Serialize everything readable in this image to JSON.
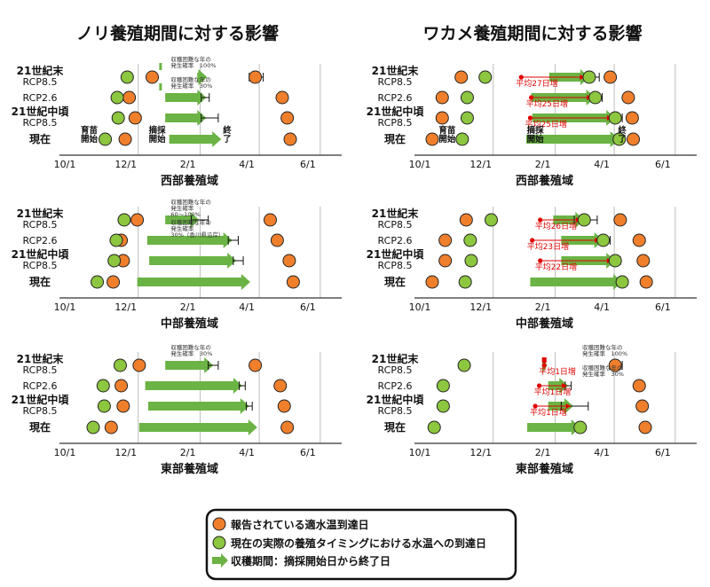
{
  "titles": {
    "nori": "ノリ養殖期間に対する影響",
    "wakame": "ワカメ養殖期間に対する影響"
  },
  "axis_ticks": [
    "10/1",
    "12/1",
    "2/1",
    "4/1",
    "6/1"
  ],
  "row_labels": [
    {
      "bold": "21世紀末",
      "sub": "RCP8.5"
    },
    {
      "bold": "",
      "sub": "RCP2.6"
    },
    {
      "bold": "21世紀中頃",
      "sub": "RCP8.5"
    },
    {
      "bold": "現在",
      "sub": ""
    }
  ],
  "legend": {
    "orange": "報告されている適水温到達日",
    "green": "現在の実際の養殖タイミングにおける水温への到達日",
    "arrow": "収穫期間：摘採開始日から終了日"
  },
  "colors": {
    "orange": "#f07f2c",
    "green": "#8dc63f",
    "arrow": "#6ab344",
    "red": "#e00000",
    "grid": "#bdbdbd"
  },
  "chart_data": [
    {
      "type": "timeline",
      "species": "nori",
      "region": "西部養殖域",
      "panel_title": "西部養殖域",
      "x_unit": "day-of-month from Oct 1 (0=10/1, 61=12/1, 123=2/1, 182=4/1, 243=6/1)",
      "x_range": [
        0,
        260
      ],
      "rows": [
        {
          "label": "21世紀末 RCP8.5",
          "orange": [
            75,
            178
          ],
          "green": [
            50
          ],
          "arrow": [
            120,
            130
          ],
          "errorbars": [
            [
              172,
              186
            ]
          ]
        },
        {
          "label": "RCP2.6",
          "orange": [
            52,
            205
          ],
          "green": [
            40
          ],
          "arrow": [
            88,
            129
          ],
          "errorbars": [
            [
              124,
              132
            ]
          ]
        },
        {
          "label": "21世紀中頃 RCP8.5",
          "orange": [
            58,
            210
          ],
          "green": [
            41
          ],
          "arrow": [
            88,
            129
          ],
          "errorbars": [
            [
              124,
              141
            ]
          ]
        },
        {
          "label": "現在",
          "orange": [
            48,
            213
          ],
          "green": [
            28
          ],
          "arrow": [
            92,
            144
          ],
          "errorbars": []
        }
      ],
      "notes": [
        {
          "lines": [
            "収穫困難な年の",
            "発生確率　100%"
          ],
          "row": 0
        },
        {
          "lines": [
            "収穫困難な年の",
            "発生確率　30%"
          ],
          "row": 1
        }
      ],
      "events": {
        "start_lines": [
          "育苗",
          "開始"
        ],
        "harvest_lines": [
          "摘採",
          "開始"
        ],
        "end_lines": [
          "終",
          "了"
        ]
      }
    },
    {
      "type": "timeline",
      "species": "nori",
      "region": "中部養殖域",
      "panel_title": "中部養殖域",
      "x_range": [
        0,
        260
      ],
      "rows": [
        {
          "label": "21世紀末 RCP8.5",
          "orange": [
            60,
            193
          ],
          "green": [
            47
          ],
          "arrow": [
            88,
            122
          ],
          "errorbars": [
            [
              114,
              131
            ]
          ]
        },
        {
          "label": "RCP2.6",
          "orange": [
            44,
            200
          ],
          "green": [
            39
          ],
          "arrow": [
            70,
            155
          ],
          "errorbars": [
            [
              151,
              161
            ]
          ]
        },
        {
          "label": "21世紀中頃 RCP8.5",
          "orange": [
            46,
            212
          ],
          "green": [
            37
          ],
          "arrow": [
            72,
            159
          ],
          "errorbars": [
            [
              156,
              166
            ]
          ]
        },
        {
          "label": "現在",
          "orange": [
            36,
            216
          ],
          "green": [
            20
          ],
          "arrow": [
            60,
            173
          ],
          "errorbars": []
        }
      ],
      "notes": [
        {
          "lines": [
            "収穫困難な年の",
            "発生確率",
            "60～100%"
          ],
          "row": 0
        },
        {
          "lines": [
            "収穫困難な年の",
            "発生確率",
            "30%（香川県沿岸）"
          ],
          "row": 1
        }
      ]
    },
    {
      "type": "timeline",
      "species": "nori",
      "region": "東部養殖域",
      "panel_title": "東部養殖域",
      "x_range": [
        0,
        260
      ],
      "rows": [
        {
          "label": "21世紀末 RCP8.5",
          "orange": [
            62,
            178
          ],
          "green": [
            43
          ],
          "arrow": [
            88,
            136
          ],
          "errorbars": [
            [
              131,
              141
            ]
          ]
        },
        {
          "label": "RCP2.6",
          "orange": [
            44,
            203
          ],
          "green": [
            26
          ],
          "arrow": [
            68,
            165
          ],
          "errorbars": [
            [
              162,
              168
            ]
          ]
        },
        {
          "label": "21世紀中頃 RCP8.5",
          "orange": [
            46,
            207
          ],
          "green": [
            27
          ],
          "arrow": [
            71,
            172
          ],
          "errorbars": [
            [
              169,
              175
            ]
          ]
        },
        {
          "label": "現在",
          "orange": [
            34,
            210
          ],
          "green": [
            16
          ],
          "arrow": [
            62,
            180
          ],
          "errorbars": []
        }
      ],
      "notes": [
        {
          "lines": [
            "収穫困難な年の",
            "発生確率　30%"
          ],
          "row": 0
        }
      ]
    },
    {
      "type": "timeline",
      "species": "wakame",
      "region": "西部養殖域",
      "panel_title": "西部養殖域",
      "x_range": [
        0,
        260
      ],
      "rows": [
        {
          "label": "21世紀末 RCP8.5",
          "orange": [
            29,
            178
          ],
          "green": [
            53,
            157
          ],
          "arrow": [
            117,
            157
          ],
          "errorbars": [
            [
              154,
              167
            ]
          ],
          "shift": {
            "text": "平均27日増",
            "from": 89,
            "to": 153
          }
        },
        {
          "label": "RCP2.6",
          "orange": [
            10,
            196
          ],
          "green": [
            35,
            163
          ],
          "arrow": [
            99,
            163
          ],
          "errorbars": [
            [
              160,
              170
            ]
          ],
          "shift": {
            "text": "平均25日増",
            "from": 99,
            "to": 160
          }
        },
        {
          "label": "21世紀中頃 RCP8.5",
          "orange": [
            10,
            200
          ],
          "green": [
            35,
            183
          ],
          "arrow": [
            100,
            183
          ],
          "errorbars": [
            [
              180,
              190
            ]
          ],
          "shift": {
            "text": "平均25日増",
            "from": 98,
            "to": 180
          }
        },
        {
          "label": "現在",
          "orange": [
            0,
            201
          ],
          "green": [
            30,
            187
          ],
          "arrow": [
            94,
            187
          ],
          "errorbars": []
        }
      ],
      "events": {
        "start_lines": [
          "育苗",
          "開始"
        ],
        "harvest_lines": [
          "摘採",
          "開始"
        ],
        "end_lines": [
          "終",
          "了"
        ]
      }
    },
    {
      "type": "timeline",
      "species": "wakame",
      "region": "中部養殖域",
      "panel_title": "中部養殖域",
      "x_range": [
        0,
        260
      ],
      "rows": [
        {
          "label": "21世紀末 RCP8.5",
          "orange": [
            34,
            188
          ],
          "green": [
            59,
            152
          ],
          "arrow": [
            121,
            152
          ],
          "errorbars": [
            [
              142,
              165
            ]
          ],
          "shift": {
            "text": "平均26日増",
            "from": 108,
            "to": 149
          }
        },
        {
          "label": "RCP2.6",
          "orange": [
            13,
            207
          ],
          "green": [
            38,
            171
          ],
          "arrow": [
            129,
            171
          ],
          "errorbars": [
            [
              168,
              178
            ]
          ],
          "shift": {
            "text": "平均23日増",
            "from": 100,
            "to": 168
          }
        },
        {
          "label": "21世紀中頃 RCP8.5",
          "orange": [
            13,
            211
          ],
          "green": [
            39,
            183
          ],
          "arrow": [
            129,
            183
          ],
          "errorbars": [
            [
              180,
              188
            ]
          ],
          "shift": {
            "text": "平均22日増",
            "from": 108,
            "to": 180
          }
        },
        {
          "label": "現在",
          "orange": [
            0,
            214
          ],
          "green": [
            33,
            190
          ],
          "arrow": [
            98,
            190
          ],
          "errorbars": []
        }
      ]
    },
    {
      "type": "timeline",
      "species": "wakame",
      "region": "東部養殖域",
      "panel_title": "東部養殖域",
      "x_range": [
        0,
        260
      ],
      "rows": [
        {
          "label": "21世紀末 RCP8.5",
          "orange": [
            183
          ],
          "green": [
            32
          ],
          "arrow": [
            110,
            115
          ],
          "errorbars": [
            [
              178,
              190
            ]
          ],
          "marker": 112,
          "shift": {
            "text": "平均1日増",
            "from": 112,
            "to": 112
          }
        },
        {
          "label": "RCP2.6",
          "orange": [
            207
          ],
          "green": [
            11
          ],
          "arrow": [
            116,
            136
          ],
          "errorbars": [
            [
              133,
              139
            ]
          ],
          "shift": {
            "text": "平均1日増",
            "from": 107,
            "to": 135
          }
        },
        {
          "label": "21世紀中頃 RCP8.5",
          "orange": [
            210
          ],
          "green": [
            11
          ],
          "arrow": [
            116,
            141
          ],
          "errorbars": [
            [
              129,
              156
            ]
          ],
          "shift": {
            "text": "平均1日増",
            "from": 103,
            "to": 139
          }
        },
        {
          "label": "現在",
          "orange": [
            213
          ],
          "green": [
            2,
            148
          ],
          "arrow": [
            95,
            148
          ],
          "errorbars": []
        }
      ],
      "notes": [
        {
          "lines": [
            "収穫困難な年の",
            "発生確率　100%"
          ],
          "row": 0
        },
        {
          "lines": [
            "収穫困難な年の",
            "発生確率　30%"
          ],
          "row": 1
        }
      ]
    }
  ]
}
